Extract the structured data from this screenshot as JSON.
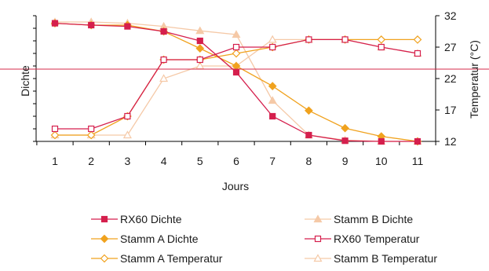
{
  "chart_data": {
    "type": "line",
    "title": "",
    "xlabel": "Jours",
    "ylabel_left": "Dichte",
    "ylabel_right": "Temperatur (°C)",
    "x": [
      1,
      2,
      3,
      4,
      5,
      6,
      7,
      8,
      9,
      10,
      11
    ],
    "x_tick_labels": [
      "1",
      "2",
      "3",
      "4",
      "5",
      "6",
      "7",
      "8",
      "9",
      "10",
      "11"
    ],
    "y_left": {
      "range": [
        12,
        32
      ],
      "tick_labels_shown": false
    },
    "y_right": {
      "range": [
        12,
        32
      ],
      "ticks": [
        12,
        17,
        22,
        27,
        32
      ],
      "tick_labels": [
        "12",
        "17",
        "22",
        "27",
        "32"
      ]
    },
    "reference_line": {
      "y": 23.5,
      "color": "#d62b4b"
    },
    "grid": false,
    "legend_position": "bottom",
    "series": [
      {
        "name": "RX60 Dichte",
        "color": "#d51f4d",
        "marker": "square-filled",
        "values": [
          30.8,
          30.5,
          30.3,
          29.5,
          28,
          23,
          16,
          13,
          12.1,
          12,
          12
        ]
      },
      {
        "name": "Stamm B Dichte",
        "color": "#f5c9a7",
        "marker": "triangle-filled",
        "values": [
          31,
          31,
          30.8,
          30.3,
          29.6,
          29,
          18.5,
          13,
          12.2,
          12,
          12
        ]
      },
      {
        "name": "Stamm A Dichte",
        "color": "#f0a21e",
        "marker": "diamond-filled",
        "values": [
          30.8,
          30.5,
          30.5,
          29.5,
          26.8,
          24,
          20.8,
          16.9,
          14.1,
          12.8,
          12
        ]
      },
      {
        "name": "RX60 Temperatur",
        "color": "#d51f4d",
        "marker": "square-open",
        "values": [
          14,
          14,
          16,
          25,
          25,
          27,
          27,
          28.2,
          28.2,
          27,
          26
        ]
      },
      {
        "name": "Stamm A Temperatur",
        "color": "#f0a21e",
        "marker": "diamond-open",
        "values": [
          13,
          13,
          16,
          25,
          25,
          26,
          27,
          28.2,
          28.2,
          28.2,
          28.2
        ]
      },
      {
        "name": "Stamm B Temperatur",
        "color": "#f5c9a7",
        "marker": "triangle-open",
        "values": [
          13,
          13,
          13,
          22,
          24,
          24,
          28.2,
          28.2,
          28.2,
          27,
          26
        ]
      }
    ]
  }
}
